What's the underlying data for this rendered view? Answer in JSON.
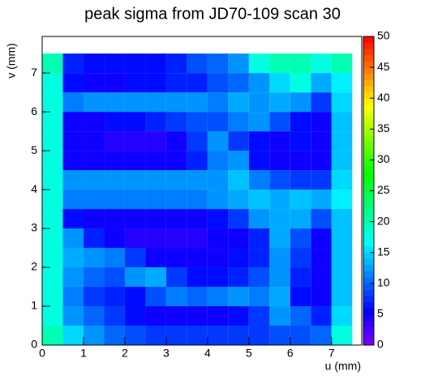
{
  "chart_data": {
    "type": "heatmap",
    "title": "peak sigma from JD70-109 scan 30",
    "x_label": "u (mm)",
    "y_label": "v (mm)",
    "xlim": [
      0,
      7.73
    ],
    "ylim": [
      0,
      7.94
    ],
    "xticks": [
      0,
      1,
      2,
      3,
      4,
      5,
      6,
      7
    ],
    "yticks": [
      0,
      1,
      2,
      3,
      4,
      5,
      6,
      7
    ],
    "xbins": [
      0,
      0.5,
      1,
      1.5,
      2,
      2.5,
      3,
      3.5,
      4,
      4.5,
      5,
      5.5,
      6,
      6.5,
      7,
      7.5
    ],
    "ybins": [
      0,
      0.5,
      1,
      1.5,
      2,
      2.5,
      3,
      3.5,
      4,
      4.5,
      5,
      5.5,
      6,
      6.5,
      7,
      7.5
    ],
    "clim": [
      0,
      50
    ],
    "cticks": [
      0,
      5,
      10,
      15,
      20,
      25,
      30,
      35,
      40,
      45,
      50
    ],
    "z": [
      [
        20,
        15,
        12,
        10,
        9,
        8,
        8,
        8,
        8,
        8,
        8,
        9,
        9,
        10,
        18
      ],
      [
        18,
        12,
        10,
        8,
        6,
        5,
        5,
        5,
        5,
        6,
        8,
        12,
        10,
        7,
        15
      ],
      [
        18,
        11,
        8,
        7,
        6,
        9,
        11,
        10,
        11,
        12,
        11,
        13,
        6,
        5,
        14
      ],
      [
        18,
        12,
        10,
        9,
        12,
        13,
        8,
        6,
        6,
        7,
        9,
        12,
        7,
        5,
        14
      ],
      [
        18,
        13,
        12,
        11,
        8,
        5,
        5,
        5,
        5,
        6,
        7,
        12,
        8,
        5,
        14
      ],
      [
        18,
        12,
        7,
        5,
        4,
        4,
        4,
        4,
        5,
        5,
        7,
        13,
        9,
        5,
        14
      ],
      [
        18,
        6,
        5,
        5,
        5,
        5,
        5,
        5,
        6,
        8,
        12,
        13,
        13,
        9,
        14
      ],
      [
        18,
        11,
        11,
        11,
        11,
        11,
        11,
        11,
        12,
        13,
        14,
        13,
        14,
        13,
        16
      ],
      [
        18,
        12,
        12,
        12,
        12,
        12,
        12,
        12,
        12,
        14,
        11,
        9,
        8,
        8,
        15
      ],
      [
        18,
        5,
        5,
        5,
        5,
        5,
        5,
        7,
        11,
        12,
        6,
        5,
        5,
        5,
        14
      ],
      [
        18,
        5,
        5,
        4,
        4,
        4,
        5,
        8,
        12,
        8,
        6,
        5,
        6,
        5,
        14
      ],
      [
        18,
        5,
        5,
        6,
        6,
        7,
        8,
        9,
        9,
        11,
        12,
        9,
        6,
        5,
        14
      ],
      [
        18,
        11,
        12,
        12,
        12,
        12,
        12,
        12,
        11,
        13,
        12,
        13,
        12,
        8,
        15
      ],
      [
        18,
        6,
        5,
        5,
        6,
        6,
        7,
        7,
        9,
        10,
        12,
        15,
        18,
        13,
        16
      ],
      [
        20,
        7,
        6,
        6,
        6,
        6,
        7,
        9,
        10,
        12,
        18,
        20,
        20,
        18,
        20
      ]
    ]
  }
}
